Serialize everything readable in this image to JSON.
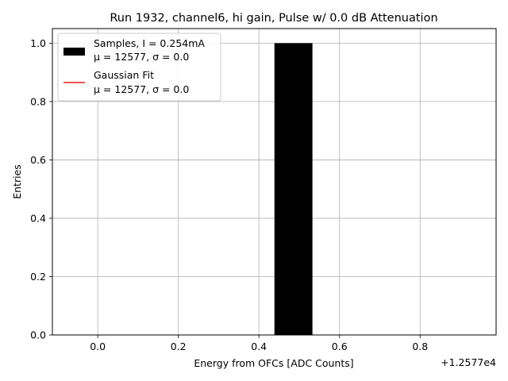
{
  "chart_data": {
    "type": "bar",
    "title": "Run 1932, channel6, hi gain, Pulse w/ 0.0 dB Attenuation",
    "xlabel": "Energy from OFCs [ADC Counts]",
    "ylabel": "Entries",
    "x_offset_label": "+1.2577e4",
    "xlim": [
      -0.1126,
      0.9886
    ],
    "ylim": [
      0,
      1.05
    ],
    "grid": true,
    "x_ticks": [
      {
        "value": 0.0,
        "label": "0.0"
      },
      {
        "value": 0.2,
        "label": "0.2"
      },
      {
        "value": 0.4,
        "label": "0.4"
      },
      {
        "value": 0.6,
        "label": "0.6"
      },
      {
        "value": 0.8,
        "label": "0.8"
      }
    ],
    "y_ticks": [
      {
        "value": 0.0,
        "label": "0.0"
      },
      {
        "value": 0.2,
        "label": "0.2"
      },
      {
        "value": 0.4,
        "label": "0.4"
      },
      {
        "value": 0.6,
        "label": "0.6"
      },
      {
        "value": 0.8,
        "label": "0.8"
      },
      {
        "value": 1.0,
        "label": "1.0"
      }
    ],
    "bars": [
      {
        "x_start": 0.4385,
        "x_end": 0.5328,
        "value": 1.0
      }
    ],
    "legend": {
      "placement": "top-left",
      "entries": [
        {
          "kind": "patch",
          "color": "#000000",
          "line1": "Samples, I = 0.254mA",
          "line2": "μ = 12577, σ = 0.0"
        },
        {
          "kind": "line",
          "color": "#e31a1c",
          "line1": "Gaussian Fit",
          "line2": "μ = 12577, σ = 0.0"
        }
      ]
    }
  }
}
